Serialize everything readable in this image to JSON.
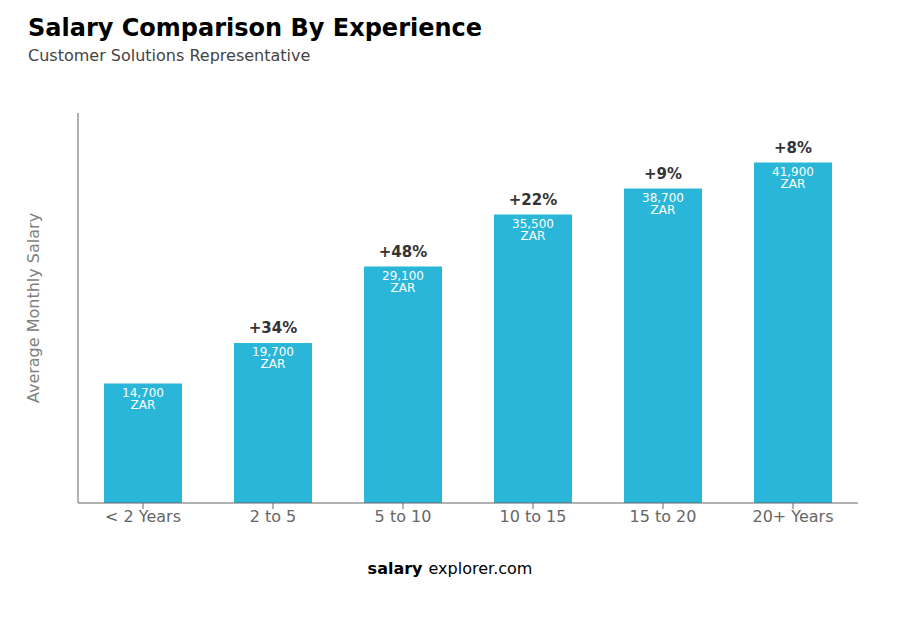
{
  "chart_data": {
    "type": "bar",
    "title": "Salary Comparison By Experience",
    "subtitle": "Customer Solutions Representative",
    "ylabel": "Average Monthly Salary",
    "categories": [
      "< 2 Years",
      "2 to 5",
      "5 to 10",
      "10 to 15",
      "15 to 20",
      "20+ Years"
    ],
    "values": [
      14700,
      19700,
      29100,
      35500,
      38700,
      41900
    ],
    "value_labels": [
      "14,700 ZAR",
      "19,700 ZAR",
      "29,100 ZAR",
      "35,500 ZAR",
      "38,700 ZAR",
      "41,900 ZAR"
    ],
    "data_labels": true,
    "annotations": [
      "+34%",
      "+48%",
      "+22%",
      "+9%",
      "+8%"
    ],
    "watermark": [
      "salary",
      "explorer.com"
    ],
    "color": "#29B6D8",
    "ylim": [
      0,
      48000
    ],
    "grid": false,
    "tick_labels": "x"
  }
}
